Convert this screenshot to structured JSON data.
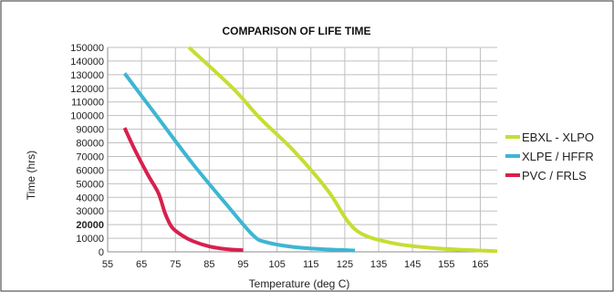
{
  "chart_data": {
    "type": "line",
    "title": "COMPARISON OF LIFE TIME",
    "xlabel": "Temperature (deg C)",
    "ylabel": "Time (hrs)",
    "xlim": [
      55,
      170
    ],
    "ylim": [
      0,
      150000
    ],
    "x_ticks": [
      55,
      65,
      75,
      85,
      95,
      105,
      115,
      125,
      135,
      145,
      155,
      165
    ],
    "y_ticks": [
      0,
      10000,
      20000,
      30000,
      40000,
      50000,
      60000,
      70000,
      80000,
      90000,
      100000,
      110000,
      120000,
      130000,
      140000,
      150000
    ],
    "y_ticks_bold": [
      20000
    ],
    "grid": true,
    "legend_position": "right",
    "series": [
      {
        "name": "EBXL - XLPO",
        "color": "#c6dd33",
        "points": [
          [
            79,
            150000
          ],
          [
            92,
            120000
          ],
          [
            100,
            98000
          ],
          [
            110,
            74000
          ],
          [
            120,
            45000
          ],
          [
            126,
            22000
          ],
          [
            131,
            12000
          ],
          [
            140,
            6000
          ],
          [
            150,
            3000
          ],
          [
            160,
            1500
          ],
          [
            170,
            500
          ]
        ]
      },
      {
        "name": "XLPE / HFFR",
        "color": "#3db6d3",
        "points": [
          [
            60,
            131000
          ],
          [
            70,
            98000
          ],
          [
            80,
            65000
          ],
          [
            90,
            35000
          ],
          [
            98,
            12000
          ],
          [
            102,
            7000
          ],
          [
            110,
            3500
          ],
          [
            118,
            2000
          ],
          [
            128,
            1000
          ]
        ]
      },
      {
        "name": "PVC / FRLS",
        "color": "#d8204e",
        "points": [
          [
            60,
            91000
          ],
          [
            63,
            75000
          ],
          [
            67,
            56000
          ],
          [
            70,
            43000
          ],
          [
            72,
            28000
          ],
          [
            74,
            18000
          ],
          [
            77,
            12000
          ],
          [
            80,
            8000
          ],
          [
            85,
            4000
          ],
          [
            90,
            2000
          ],
          [
            95,
            1200
          ]
        ]
      }
    ]
  }
}
